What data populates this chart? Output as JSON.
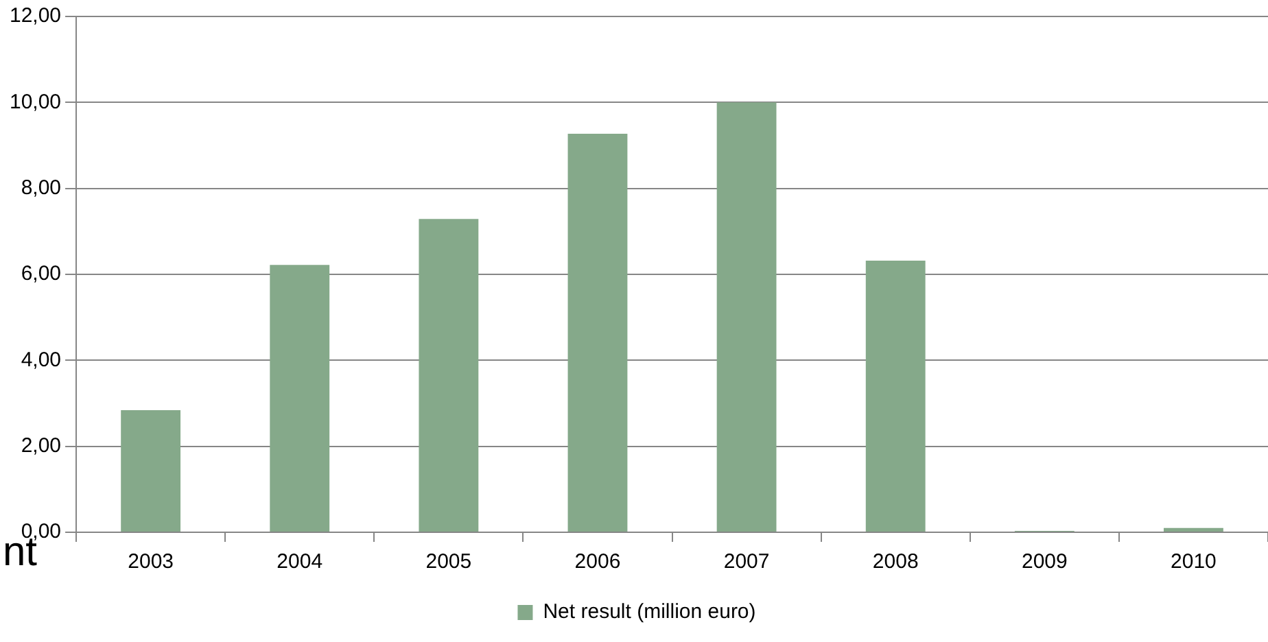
{
  "chart_data": {
    "type": "bar",
    "categories": [
      "2003",
      "2004",
      "2005",
      "2006",
      "2007",
      "2008",
      "2009",
      "2010"
    ],
    "series": [
      {
        "name": "Net result (million euro)",
        "color": "#85a98a",
        "values": [
          2.84,
          6.22,
          7.29,
          9.27,
          10.0,
          6.32,
          0.03,
          0.1
        ]
      }
    ],
    "ylim": [
      0,
      12
    ],
    "yticks": [
      {
        "value": 0,
        "label": "0,00"
      },
      {
        "value": 2,
        "label": "2,00"
      },
      {
        "value": 4,
        "label": "4,00"
      },
      {
        "value": 6,
        "label": "6,00"
      },
      {
        "value": 8,
        "label": "8,00"
      },
      {
        "value": 10,
        "label": "10,00"
      },
      {
        "value": 12,
        "label": "12,00"
      }
    ],
    "grid": "y",
    "legend": "bottom",
    "annotations": [
      "nt"
    ]
  }
}
